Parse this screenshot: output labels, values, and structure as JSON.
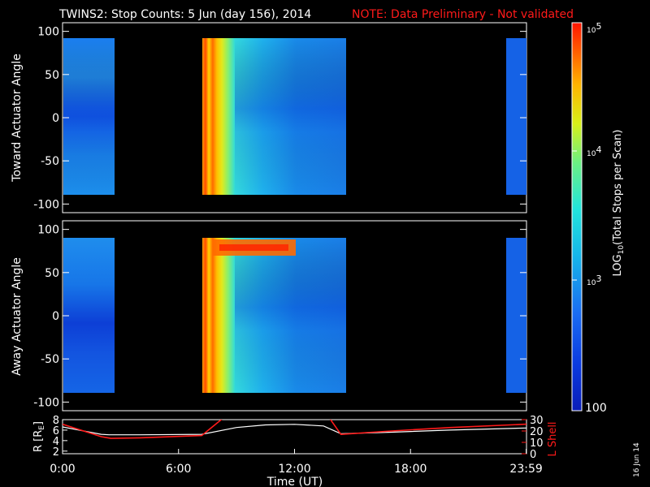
{
  "header": {
    "title": "TWINS2: Stop Counts:  5 Jun (day 156), 2014",
    "note": "NOTE: Data Preliminary - Not validated"
  },
  "side_date": "16 Jun 14",
  "colorbar": {
    "label": "LOG10(Total Stops per Scan)",
    "label_main": "LOG",
    "label_sub": "10",
    "label_rest": "(Total Stops per Scan)",
    "top_tick": {
      "base": "10",
      "exp": "5"
    },
    "mid_tick": {
      "base": "10",
      "exp": "4"
    },
    "low_tick": {
      "base": "10",
      "exp": "3"
    },
    "bottom_tick": "100",
    "range": [
      100,
      100000
    ],
    "scale": "log"
  },
  "colors": {
    "background": "#000000",
    "text": "#ffffff",
    "note": "#ff1a1a",
    "r_line": "#ffffff",
    "lshell_line": "#ff1a1a"
  },
  "chart_data": [
    {
      "type": "heatmap",
      "panel": "top",
      "ylabel": "Toward Actuator Angle",
      "ylim": [
        -110,
        110
      ],
      "yticks": [
        "100",
        "50",
        "0",
        "-50",
        "-100"
      ],
      "data_y_range": [
        -88,
        90
      ],
      "x_unit": "hours UT",
      "xlim": [
        0,
        24
      ],
      "data_intervals_hours": [
        [
          0,
          2.5
        ],
        [
          7.4,
          14.9
        ],
        [
          23.3,
          24
        ]
      ],
      "dominant_log10_level": [
        {
          "interval_hours": [
            0,
            2.5
          ],
          "level": 2.75
        },
        {
          "interval_hours": [
            7.4,
            8.4
          ],
          "level": 4.7
        },
        {
          "interval_hours": [
            8.4,
            9.5
          ],
          "level": 3.7
        },
        {
          "interval_hours": [
            9.5,
            14.9
          ],
          "level": 2.9
        },
        {
          "interval_hours": [
            23.3,
            24
          ],
          "level": 2.7
        }
      ]
    },
    {
      "type": "heatmap",
      "panel": "middle",
      "ylabel": "Away Actuator Angle",
      "ylim": [
        -110,
        110
      ],
      "yticks": [
        "100",
        "50",
        "0",
        "-50",
        "-100"
      ],
      "data_y_range": [
        -88,
        90
      ],
      "x_unit": "hours UT",
      "xlim": [
        0,
        24
      ],
      "data_intervals_hours": [
        [
          0,
          2.5
        ],
        [
          7.4,
          14.9
        ],
        [
          23.3,
          24
        ]
      ],
      "features": [
        {
          "description_angle": 80,
          "interval_hours": [
            8.0,
            11.8
          ],
          "level": 4.7
        }
      ],
      "dominant_log10_level": [
        {
          "interval_hours": [
            0,
            2.5
          ],
          "level": 2.8
        },
        {
          "interval_hours": [
            7.4,
            8.4
          ],
          "level": 4.7
        },
        {
          "interval_hours": [
            8.4,
            9.7
          ],
          "level": 3.8
        },
        {
          "interval_hours": [
            9.7,
            14.9
          ],
          "level": 2.9
        },
        {
          "interval_hours": [
            23.3,
            24
          ],
          "level": 2.7
        }
      ]
    },
    {
      "type": "line",
      "panel": "bottom",
      "ylabel_left": "R [RE]",
      "ylabel_left_main": "R [R",
      "ylabel_left_sub": "E",
      "ylabel_left_end": "]",
      "ylabel_right": "L Shell",
      "ylim_left": [
        1.5,
        8
      ],
      "ylim_right": [
        0,
        30
      ],
      "yticks_left": [
        "8",
        "6",
        "4",
        "2"
      ],
      "yticks_right": [
        "30",
        "20",
        "10",
        "0"
      ],
      "xlabel": "Time (UT)",
      "xlim": [
        0,
        24
      ],
      "xticks": [
        "0:00",
        "6:00",
        "12:00",
        "18:00",
        "23:59"
      ],
      "series": [
        {
          "name": "R",
          "x": [
            0,
            2,
            2.4,
            4,
            7.2,
            9,
            10.5,
            12,
            13.5,
            14.4,
            17,
            20,
            24
          ],
          "y": [
            6.6,
            5.2,
            5.1,
            5.1,
            5.2,
            6.5,
            7.0,
            7.1,
            6.8,
            5.3,
            5.6,
            6.0,
            6.4
          ]
        },
        {
          "name": "L Shell",
          "x": [
            0,
            2,
            2.5,
            4,
            7.2,
            8.5,
            13.7,
            14.4,
            17,
            20,
            24
          ],
          "y": [
            26,
            15,
            13.5,
            14,
            16,
            34,
            34,
            17,
            20,
            23,
            26
          ]
        }
      ]
    }
  ]
}
